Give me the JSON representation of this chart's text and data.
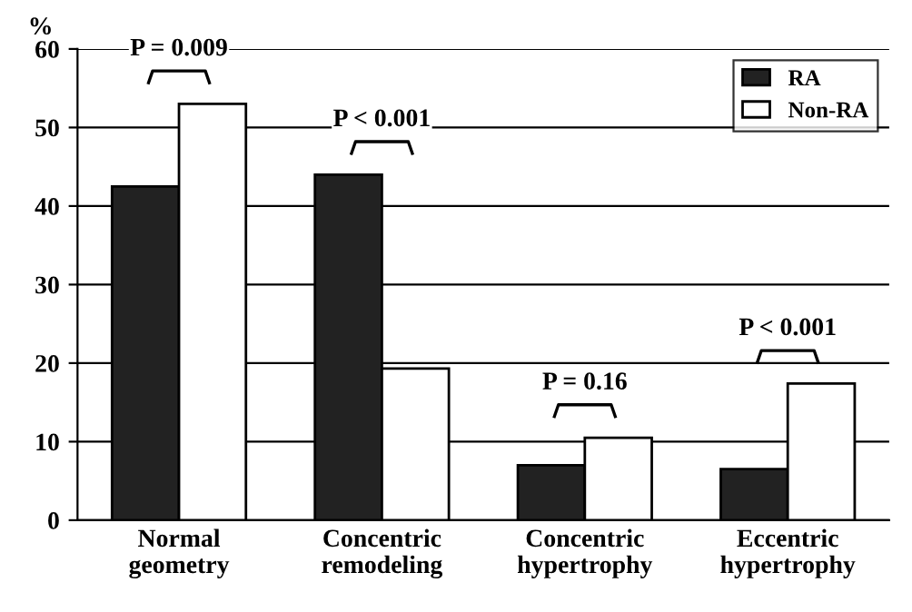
{
  "chart_data": {
    "type": "bar",
    "ylabel": "%",
    "categories": [
      "Normal\ngeometry",
      "Concentric\nremodeling",
      "Concentric\nhypertrophy",
      "Eccentric\nhypertrophy"
    ],
    "series": [
      {
        "name": "RA",
        "color": "#222222",
        "values": [
          42.5,
          44,
          7,
          6.5
        ]
      },
      {
        "name": "Non-RA",
        "color": "#ffffff",
        "values": [
          53,
          19.3,
          10.5,
          17.4
        ]
      }
    ],
    "ylim": [
      0,
      60
    ],
    "yticks": [
      0,
      10,
      20,
      30,
      40,
      50,
      60
    ],
    "grid": "y",
    "legend": "top right",
    "annotations": [
      "P = 0.009",
      "P < 0.001",
      "P = 0.16",
      "P < 0.001"
    ]
  }
}
